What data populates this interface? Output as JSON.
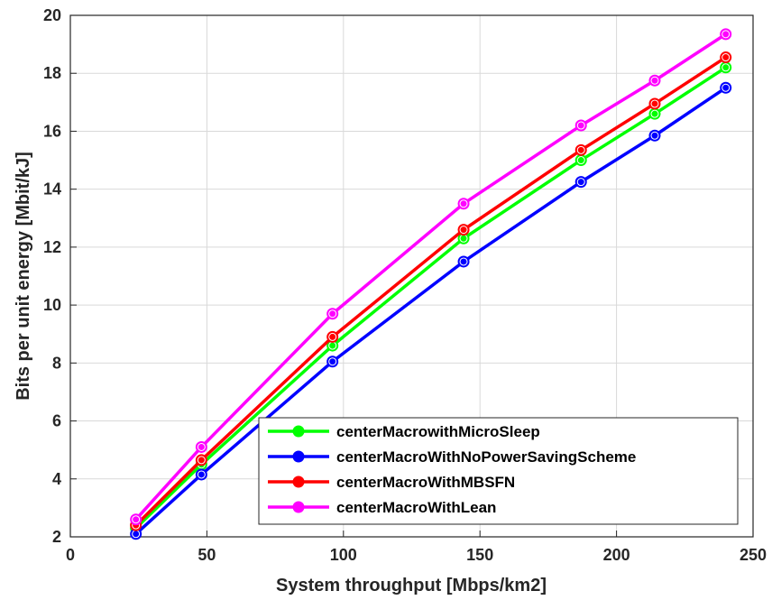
{
  "chart_data": {
    "type": "line",
    "title": "",
    "xlabel": "System throughput [Mbps/km2]",
    "ylabel": "Bits per unit energy [Mbit/kJ]",
    "xlim": [
      0,
      250
    ],
    "ylim": [
      2,
      20
    ],
    "xticks": [
      "0",
      "50",
      "100",
      "150",
      "200",
      "250"
    ],
    "yticks": [
      "2",
      "4",
      "6",
      "8",
      "10",
      "12",
      "14",
      "16",
      "18",
      "20"
    ],
    "grid": true,
    "legend_position": "bottom-right",
    "x": [
      24,
      48,
      96,
      144,
      187,
      214,
      240
    ],
    "series": [
      {
        "name": "centerMacrowithMicroSleep",
        "color": "#00ff00",
        "values": [
          2.3,
          4.5,
          8.6,
          12.3,
          15.0,
          16.6,
          18.2
        ]
      },
      {
        "name": "centerMacroWithNoPowerSavingScheme",
        "color": "#0000ff",
        "values": [
          2.1,
          4.15,
          8.05,
          11.5,
          14.25,
          15.85,
          17.5
        ]
      },
      {
        "name": "centerMacroWithMBSFN",
        "color": "#ff0000",
        "values": [
          2.4,
          4.65,
          8.9,
          12.6,
          15.35,
          16.95,
          18.55
        ]
      },
      {
        "name": "centerMacroWithLean",
        "color": "#ff00ff",
        "values": [
          2.6,
          5.1,
          9.7,
          13.5,
          16.2,
          17.75,
          19.35
        ]
      }
    ]
  }
}
